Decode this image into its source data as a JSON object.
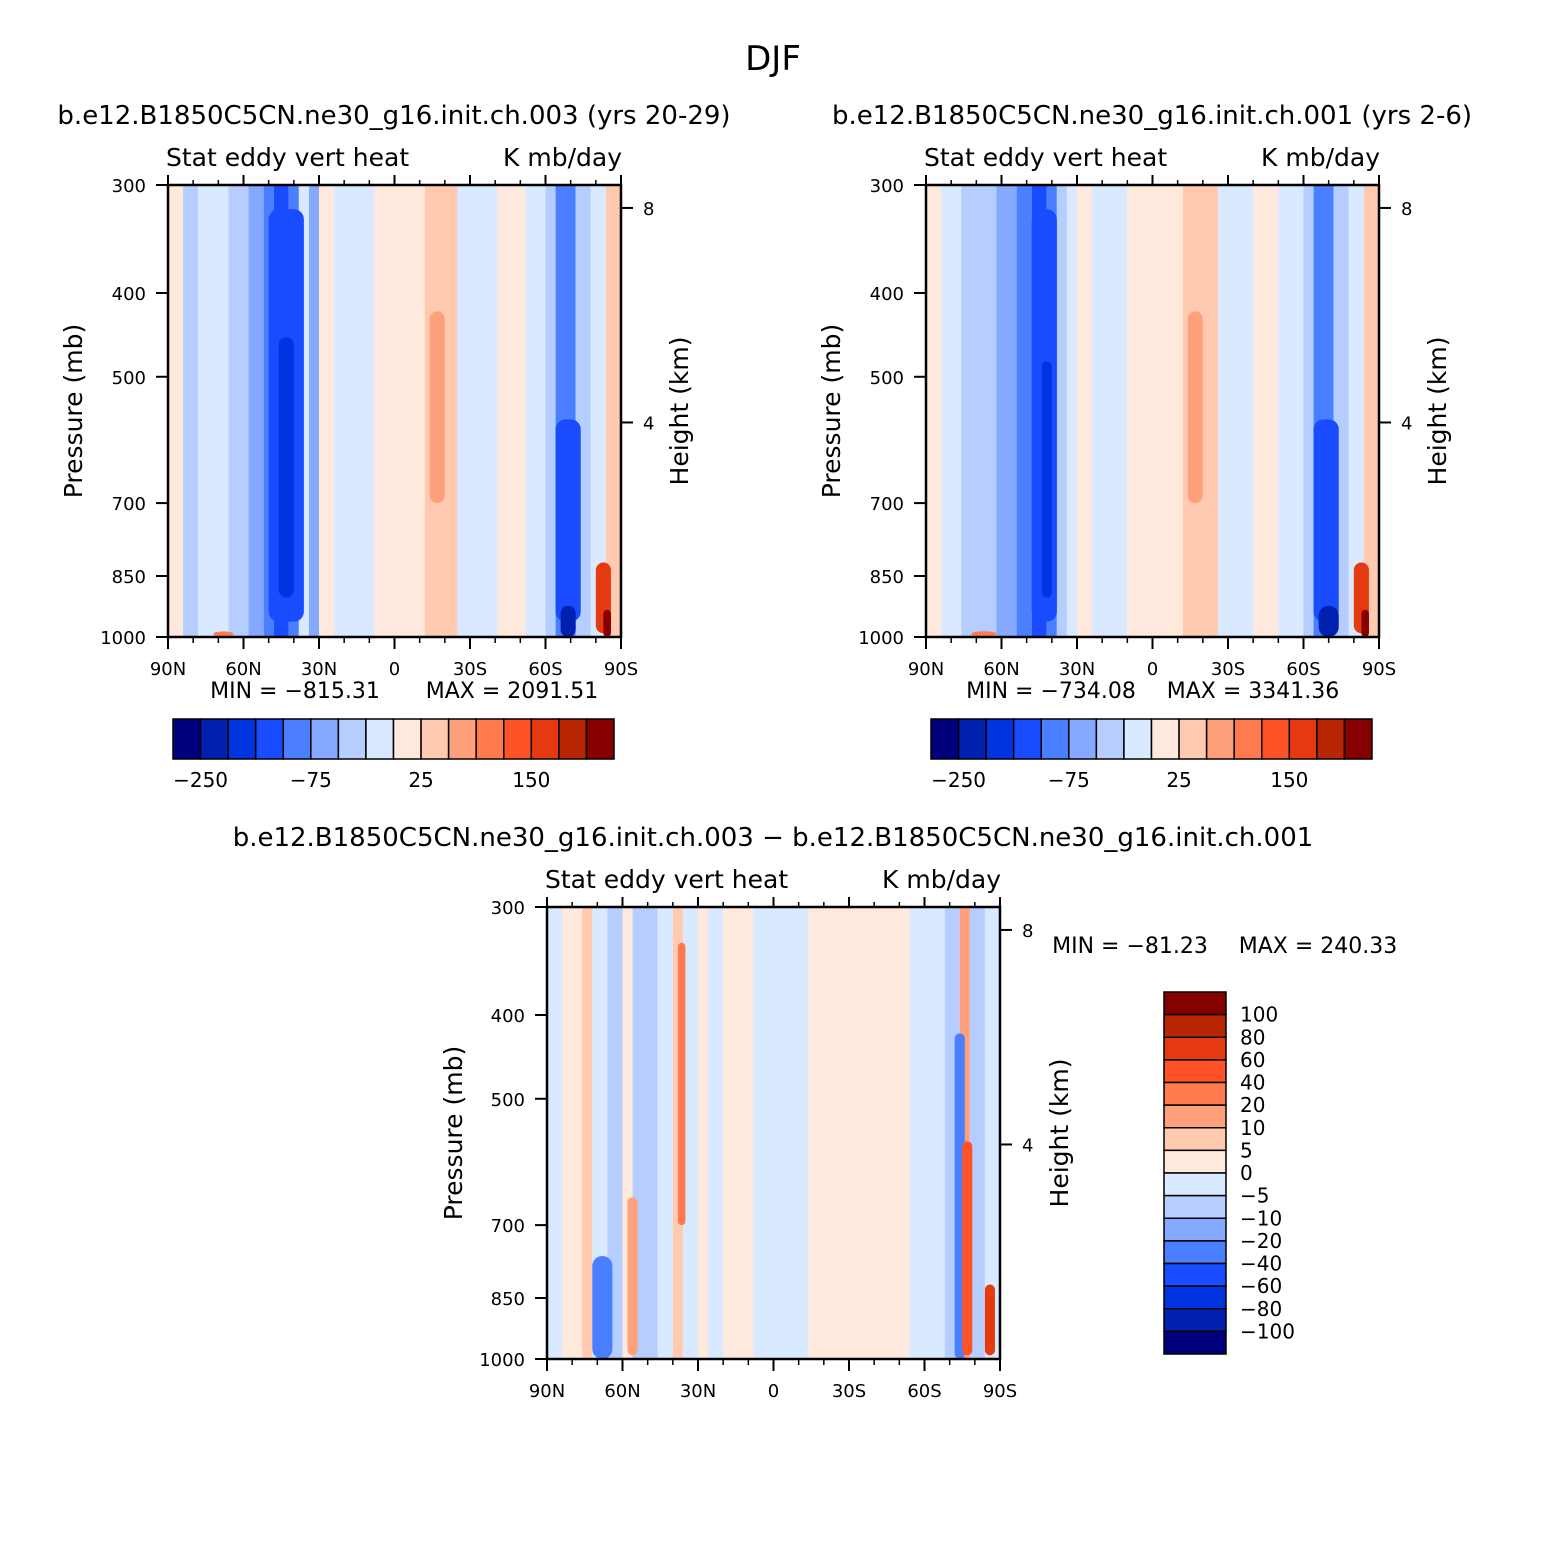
{
  "figure": {
    "title": "DJF"
  },
  "chart_data": [
    {
      "type": "heatmap",
      "id": "p1",
      "title": "b.e12.B1850C5CN.ne30_g16.init.ch.003 (yrs 20-29)",
      "left_label": "Stat eddy vert heat",
      "right_label": "K mb/day",
      "ylabel": "Pressure (mb)",
      "ylabel2": "Height (km)",
      "x_ticks": [
        "90N",
        "60N",
        "30N",
        "0",
        "30S",
        "60S",
        "90S"
      ],
      "x_range": [
        90,
        -90
      ],
      "y_ticks": [
        "300",
        "400",
        "500",
        "700",
        "850",
        "1000"
      ],
      "y_range": [
        1000,
        300
      ],
      "y_scale": "log",
      "y2_ticks": [
        "8",
        "4"
      ],
      "min_text": "MIN = −815.31",
      "max_text": "MAX = 2091.51",
      "min": -815.31,
      "max": 2091.51,
      "colorbar_labels": [
        "−250",
        "−75",
        "25",
        "150"
      ],
      "colorbar_orientation": "horizontal",
      "colorbar_levels": 16,
      "bands": [
        {
          "lat": [
            90,
            84
          ],
          "level": 8
        },
        {
          "lat": [
            84,
            78
          ],
          "level": 6
        },
        {
          "lat": [
            78,
            66
          ],
          "level": 7
        },
        {
          "lat": [
            66,
            58
          ],
          "level": 6
        },
        {
          "lat": [
            58,
            52
          ],
          "level": 5
        },
        {
          "lat": [
            52,
            48
          ],
          "level": 4
        },
        {
          "lat": [
            48,
            42
          ],
          "level": 3
        },
        {
          "lat": [
            42,
            38
          ],
          "level": 4
        },
        {
          "lat": [
            38,
            34
          ],
          "level": 7
        },
        {
          "lat": [
            34,
            30
          ],
          "level": 5
        },
        {
          "lat": [
            30,
            24
          ],
          "level": 8
        },
        {
          "lat": [
            24,
            8
          ],
          "level": 7
        },
        {
          "lat": [
            8,
            -2
          ],
          "level": 8
        },
        {
          "lat": [
            -2,
            -12
          ],
          "level": 8
        },
        {
          "lat": [
            -12,
            -25
          ],
          "level": 9
        },
        {
          "lat": [
            -25,
            -41
          ],
          "level": 7
        },
        {
          "lat": [
            -41,
            -52
          ],
          "level": 8
        },
        {
          "lat": [
            -52,
            -60
          ],
          "level": 7
        },
        {
          "lat": [
            -60,
            -64
          ],
          "level": 6
        },
        {
          "lat": [
            -64,
            -72
          ],
          "level": 4
        },
        {
          "lat": [
            -72,
            -78
          ],
          "level": 6
        },
        {
          "lat": [
            -78,
            -84
          ],
          "level": 7
        },
        {
          "lat": [
            -84,
            -90
          ],
          "level": 9
        }
      ],
      "blobs": [
        {
          "lat": [
            50,
            36
          ],
          "p": [
            320,
            960
          ],
          "level": 3
        },
        {
          "lat": [
            46,
            40
          ],
          "p": [
            450,
            900
          ],
          "level": 2
        },
        {
          "lat": [
            -64,
            -74
          ],
          "p": [
            560,
            960
          ],
          "level": 3
        },
        {
          "lat": [
            -66,
            -72
          ],
          "p": [
            920,
            1000
          ],
          "level": 1
        },
        {
          "lat": [
            -80,
            -86
          ],
          "p": [
            820,
            990
          ],
          "level": 13
        },
        {
          "lat": [
            -83,
            -86
          ],
          "p": [
            930,
            1000
          ],
          "level": 15
        },
        {
          "lat": [
            -14,
            -20
          ],
          "p": [
            420,
            700
          ],
          "level": 10
        },
        {
          "lat": [
            72,
            64
          ],
          "p": [
            985,
            1000
          ],
          "level": 11
        }
      ]
    },
    {
      "type": "heatmap",
      "id": "p2",
      "title": "b.e12.B1850C5CN.ne30_g16.init.ch.001 (yrs 2-6)",
      "left_label": "Stat eddy vert heat",
      "right_label": "K mb/day",
      "ylabel": "Pressure (mb)",
      "ylabel2": "Height (km)",
      "x_ticks": [
        "90N",
        "60N",
        "30N",
        "0",
        "30S",
        "60S",
        "90S"
      ],
      "x_range": [
        90,
        -90
      ],
      "y_ticks": [
        "300",
        "400",
        "500",
        "700",
        "850",
        "1000"
      ],
      "y_range": [
        1000,
        300
      ],
      "y_scale": "log",
      "y2_ticks": [
        "8",
        "4"
      ],
      "min_text": "MIN = −734.08",
      "max_text": "MAX = 3341.36",
      "min": -734.08,
      "max": 3341.36,
      "colorbar_labels": [
        "−250",
        "−75",
        "25",
        "150"
      ],
      "colorbar_orientation": "horizontal",
      "colorbar_levels": 16,
      "bands": [
        {
          "lat": [
            90,
            84
          ],
          "level": 8
        },
        {
          "lat": [
            84,
            76
          ],
          "level": 7
        },
        {
          "lat": [
            76,
            62
          ],
          "level": 6
        },
        {
          "lat": [
            62,
            54
          ],
          "level": 5
        },
        {
          "lat": [
            54,
            48
          ],
          "level": 4
        },
        {
          "lat": [
            48,
            42
          ],
          "level": 3
        },
        {
          "lat": [
            42,
            38
          ],
          "level": 4
        },
        {
          "lat": [
            38,
            34
          ],
          "level": 6
        },
        {
          "lat": [
            34,
            30
          ],
          "level": 7
        },
        {
          "lat": [
            30,
            24
          ],
          "level": 8
        },
        {
          "lat": [
            24,
            10
          ],
          "level": 7
        },
        {
          "lat": [
            10,
            -2
          ],
          "level": 8
        },
        {
          "lat": [
            -2,
            -12
          ],
          "level": 8
        },
        {
          "lat": [
            -12,
            -26
          ],
          "level": 9
        },
        {
          "lat": [
            -26,
            -40
          ],
          "level": 7
        },
        {
          "lat": [
            -40,
            -50
          ],
          "level": 8
        },
        {
          "lat": [
            -50,
            -60
          ],
          "level": 7
        },
        {
          "lat": [
            -60,
            -64
          ],
          "level": 6
        },
        {
          "lat": [
            -64,
            -72
          ],
          "level": 4
        },
        {
          "lat": [
            -72,
            -78
          ],
          "level": 6
        },
        {
          "lat": [
            -78,
            -84
          ],
          "level": 7
        },
        {
          "lat": [
            -84,
            -90
          ],
          "level": 9
        }
      ],
      "blobs": [
        {
          "lat": [
            48,
            38
          ],
          "p": [
            320,
            960
          ],
          "level": 3
        },
        {
          "lat": [
            44,
            40
          ],
          "p": [
            480,
            900
          ],
          "level": 2
        },
        {
          "lat": [
            -64,
            -74
          ],
          "p": [
            560,
            960
          ],
          "level": 3
        },
        {
          "lat": [
            -66,
            -74
          ],
          "p": [
            920,
            1000
          ],
          "level": 1
        },
        {
          "lat": [
            -80,
            -86
          ],
          "p": [
            820,
            990
          ],
          "level": 13
        },
        {
          "lat": [
            -83,
            -86
          ],
          "p": [
            930,
            1000
          ],
          "level": 15
        },
        {
          "lat": [
            -14,
            -20
          ],
          "p": [
            420,
            700
          ],
          "level": 10
        },
        {
          "lat": [
            72,
            62
          ],
          "p": [
            985,
            1000
          ],
          "level": 11
        }
      ]
    },
    {
      "type": "heatmap",
      "id": "p3",
      "title": "b.e12.B1850C5CN.ne30_g16.init.ch.003 − b.e12.B1850C5CN.ne30_g16.init.ch.001",
      "left_label": "Stat eddy vert heat",
      "right_label": "K mb/day",
      "ylabel": "Pressure (mb)",
      "ylabel2": "Height (km)",
      "x_ticks": [
        "90N",
        "60N",
        "30N",
        "0",
        "30S",
        "60S",
        "90S"
      ],
      "x_range": [
        90,
        -90
      ],
      "y_ticks": [
        "300",
        "400",
        "500",
        "700",
        "850",
        "1000"
      ],
      "y_range": [
        1000,
        300
      ],
      "y_scale": "log",
      "y2_ticks": [
        "8",
        "4"
      ],
      "min_text": "MIN = −81.23",
      "max_text": "MAX = 240.33",
      "min": -81.23,
      "max": 240.33,
      "colorbar_labels": [
        "100",
        "80",
        "60",
        "40",
        "20",
        "10",
        "5",
        "0",
        "−5",
        "−10",
        "−20",
        "−40",
        "−60",
        "−80",
        "−100"
      ],
      "colorbar_orientation": "vertical",
      "colorbar_levels": 16,
      "bands": [
        {
          "lat": [
            90,
            84
          ],
          "level": 7
        },
        {
          "lat": [
            84,
            76
          ],
          "level": 8
        },
        {
          "lat": [
            76,
            72
          ],
          "level": 9
        },
        {
          "lat": [
            72,
            66
          ],
          "level": 7
        },
        {
          "lat": [
            66,
            60
          ],
          "level": 6
        },
        {
          "lat": [
            60,
            56
          ],
          "level": 8
        },
        {
          "lat": [
            56,
            46
          ],
          "level": 6
        },
        {
          "lat": [
            46,
            40
          ],
          "level": 7
        },
        {
          "lat": [
            40,
            36
          ],
          "level": 9
        },
        {
          "lat": [
            36,
            30
          ],
          "level": 7
        },
        {
          "lat": [
            30,
            26
          ],
          "level": 8
        },
        {
          "lat": [
            26,
            20
          ],
          "level": 7
        },
        {
          "lat": [
            20,
            8
          ],
          "level": 8
        },
        {
          "lat": [
            8,
            -14
          ],
          "level": 7
        },
        {
          "lat": [
            -14,
            -54
          ],
          "level": 8
        },
        {
          "lat": [
            -54,
            -68
          ],
          "level": 7
        },
        {
          "lat": [
            -68,
            -74
          ],
          "level": 6
        },
        {
          "lat": [
            -74,
            -78
          ],
          "level": 10
        },
        {
          "lat": [
            -78,
            -84
          ],
          "level": 6
        },
        {
          "lat": [
            -84,
            -90
          ],
          "level": 7
        }
      ],
      "blobs": [
        {
          "lat": [
            72,
            64
          ],
          "p": [
            760,
            1000
          ],
          "level": 4
        },
        {
          "lat": [
            58,
            54
          ],
          "p": [
            650,
            990
          ],
          "level": 10
        },
        {
          "lat": [
            38,
            35
          ],
          "p": [
            330,
            700
          ],
          "level": 11
        },
        {
          "lat": [
            -72,
            -76
          ],
          "p": [
            420,
            1000
          ],
          "level": 4
        },
        {
          "lat": [
            -75,
            -79
          ],
          "p": [
            560,
            990
          ],
          "level": 12
        },
        {
          "lat": [
            -84,
            -88
          ],
          "p": [
            820,
            990
          ],
          "level": 13
        }
      ]
    }
  ]
}
